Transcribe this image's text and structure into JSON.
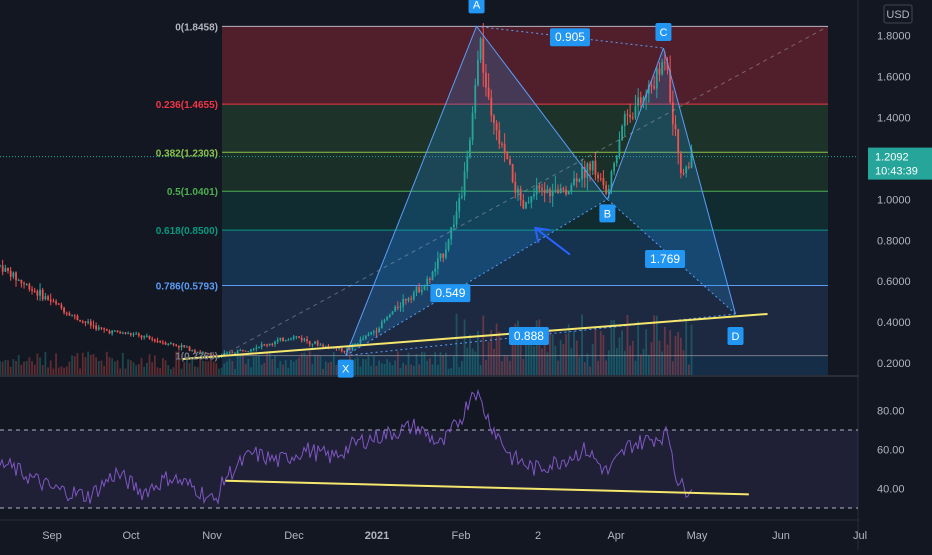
{
  "chart_data": {
    "type": "candlestick",
    "currency": "USD",
    "price_axis": {
      "ticks": [
        "0.2000",
        "0.4000",
        "0.6000",
        "0.8000",
        "1.0000",
        "1.2000",
        "1.4000",
        "1.6000",
        "1.8000",
        "2."
      ],
      "range": [
        0.1,
        2.05
      ]
    },
    "last_price": {
      "value": "1.2092",
      "countdown": "10:43:39",
      "price": 1.2092
    },
    "x_axis": {
      "labels": [
        "Sep",
        "Oct",
        "Nov",
        "Dec",
        "2021",
        "Feb",
        "2",
        "Apr",
        "May",
        "Jun",
        "Jul"
      ],
      "bold_label_index": 4
    },
    "fib_levels": [
      {
        "label": "0(1.8458)",
        "price": 1.8458,
        "color": "#b2b5be"
      },
      {
        "label": "0.236(1.4655)",
        "price": 1.4655,
        "color": "#f23645"
      },
      {
        "label": "0.382(1.2303)",
        "price": 1.2303,
        "color": "#8bc34a"
      },
      {
        "label": "0.5(1.0401)",
        "price": 1.0401,
        "color": "#4caf50"
      },
      {
        "label": "0.618(0.8500)",
        "price": 0.85,
        "color": "#089981"
      },
      {
        "label": "0.786(0.5793)",
        "price": 0.5793,
        "color": "#5b9cf6"
      },
      {
        "label": "1(0.2365)",
        "price": 0.2365,
        "color": "#787b86"
      }
    ],
    "harmonic_points": [
      {
        "label": "X",
        "date": "2020-12-20",
        "price": 0.2365
      },
      {
        "label": "A",
        "date": "2021-02-07",
        "price": 1.8458
      },
      {
        "label": "B",
        "date": "2021-03-28",
        "price": 1.0
      },
      {
        "label": "C",
        "date": "2021-04-18",
        "price": 1.74
      },
      {
        "label": "D",
        "date": "2021-05-15",
        "price": 0.44
      }
    ],
    "harmonic_ratios": [
      {
        "label": "0.549"
      },
      {
        "label": "0.905"
      },
      {
        "label": "1.769"
      },
      {
        "label": "0.888"
      }
    ],
    "price_trendline": {
      "from": {
        "date": "2020-10-20",
        "price": 0.22
      },
      "to": {
        "date": "2021-05-27",
        "price": 0.44
      }
    },
    "rsi": {
      "ticks": [
        "40.00",
        "60.00",
        "80.00"
      ],
      "upper_band": 70,
      "lower_band": 30,
      "range": [
        26,
        95
      ],
      "trendline": {
        "from": {
          "date": "2020-11-05",
          "rsi": 44
        },
        "to": {
          "date": "2021-05-20",
          "rsi": 37
        }
      },
      "anchors": [
        [
          "2020-08-15",
          52
        ],
        [
          "2020-09-01",
          40
        ],
        [
          "2020-09-15",
          36
        ],
        [
          "2020-09-25",
          48
        ],
        [
          "2020-10-05",
          38
        ],
        [
          "2020-10-15",
          46
        ],
        [
          "2020-10-25",
          40
        ],
        [
          "2020-11-01",
          33
        ],
        [
          "2020-11-05",
          46
        ],
        [
          "2020-11-15",
          58
        ],
        [
          "2020-11-25",
          54
        ],
        [
          "2020-12-05",
          60
        ],
        [
          "2020-12-15",
          56
        ],
        [
          "2020-12-25",
          64
        ],
        [
          "2021-01-05",
          68
        ],
        [
          "2021-01-15",
          72
        ],
        [
          "2021-01-25",
          62
        ],
        [
          "2021-02-02",
          78
        ],
        [
          "2021-02-06",
          92
        ],
        [
          "2021-02-12",
          74
        ],
        [
          "2021-02-20",
          56
        ],
        [
          "2021-03-01",
          50
        ],
        [
          "2021-03-10",
          54
        ],
        [
          "2021-03-20",
          60
        ],
        [
          "2021-03-28",
          48
        ],
        [
          "2021-04-05",
          62
        ],
        [
          "2021-04-15",
          66
        ],
        [
          "2021-04-20",
          68
        ],
        [
          "2021-04-23",
          45
        ],
        [
          "2021-04-26",
          39
        ],
        [
          "2021-04-29",
          43
        ]
      ]
    },
    "price_anchors": [
      [
        "2020-08-01",
        0.8
      ],
      [
        "2020-08-10",
        0.7
      ],
      [
        "2020-08-20",
        0.6
      ],
      [
        "2020-09-01",
        0.5
      ],
      [
        "2020-09-10",
        0.42
      ],
      [
        "2020-09-20",
        0.36
      ],
      [
        "2020-10-01",
        0.34
      ],
      [
        "2020-10-10",
        0.31
      ],
      [
        "2020-10-20",
        0.28
      ],
      [
        "2020-11-01",
        0.23
      ],
      [
        "2020-11-10",
        0.26
      ],
      [
        "2020-11-20",
        0.29
      ],
      [
        "2020-12-01",
        0.33
      ],
      [
        "2020-12-10",
        0.29
      ],
      [
        "2020-12-20",
        0.26
      ],
      [
        "2021-01-01",
        0.37
      ],
      [
        "2021-01-10",
        0.5
      ],
      [
        "2021-01-20",
        0.6
      ],
      [
        "2021-01-26",
        0.75
      ],
      [
        "2021-02-01",
        1.0
      ],
      [
        "2021-02-05",
        1.3
      ],
      [
        "2021-02-08",
        1.8
      ],
      [
        "2021-02-12",
        1.4
      ],
      [
        "2021-02-18",
        1.2
      ],
      [
        "2021-02-24",
        0.95
      ],
      [
        "2021-03-03",
        1.05
      ],
      [
        "2021-03-10",
        1.02
      ],
      [
        "2021-03-16",
        1.1
      ],
      [
        "2021-03-22",
        1.18
      ],
      [
        "2021-03-28",
        1.02
      ],
      [
        "2021-04-03",
        1.4
      ],
      [
        "2021-04-10",
        1.48
      ],
      [
        "2021-04-16",
        1.6
      ],
      [
        "2021-04-19",
        1.72
      ],
      [
        "2021-04-22",
        1.35
      ],
      [
        "2021-04-25",
        1.12
      ],
      [
        "2021-04-29",
        1.2092
      ]
    ]
  }
}
